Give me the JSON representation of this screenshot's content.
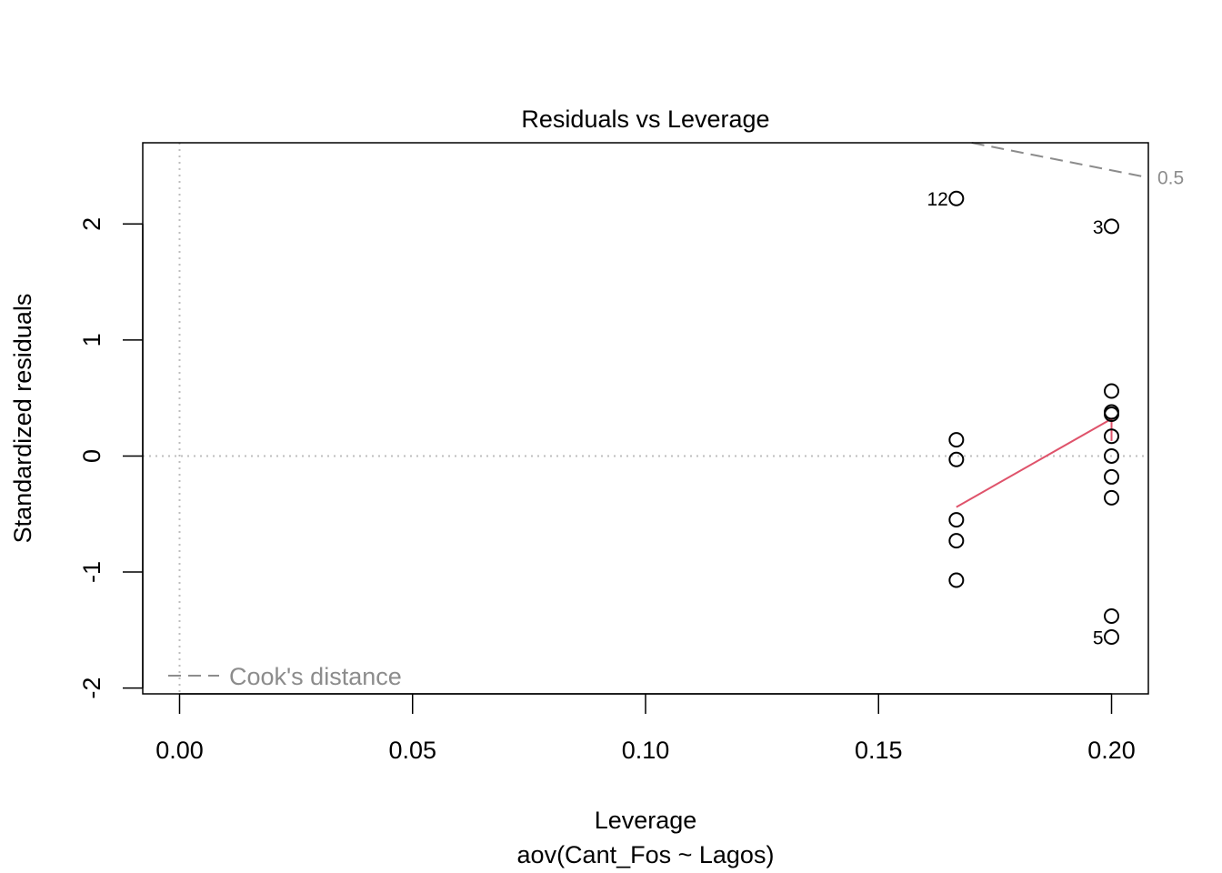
{
  "chart_data": {
    "type": "scatter",
    "title": "Residuals vs Leverage",
    "xlabel": "Leverage",
    "subtitle": "aov(Cant_Fos ~ Lagos)",
    "ylabel": "Standardized residuals",
    "xlim": [
      -0.0079,
      0.2079
    ],
    "ylim": [
      -2.05,
      2.7
    ],
    "x_ticks": [
      0.0,
      0.05,
      0.1,
      0.15,
      0.2
    ],
    "x_tick_labels": [
      "0.00",
      "0.05",
      "0.10",
      "0.15",
      "0.20"
    ],
    "y_ticks": [
      -2,
      -1,
      0,
      1,
      2
    ],
    "y_tick_labels": [
      "-2",
      "-1",
      "0",
      "1",
      "2"
    ],
    "reference_lines": {
      "x": 0,
      "y": 0
    },
    "points": [
      {
        "x": 0.1667,
        "y": 2.22,
        "label": "12"
      },
      {
        "x": 0.1667,
        "y": 0.14,
        "label": ""
      },
      {
        "x": 0.1667,
        "y": -0.03,
        "label": ""
      },
      {
        "x": 0.1667,
        "y": -0.55,
        "label": ""
      },
      {
        "x": 0.1667,
        "y": -0.73,
        "label": ""
      },
      {
        "x": 0.1667,
        "y": -1.07,
        "label": ""
      },
      {
        "x": 0.2,
        "y": 1.98,
        "label": "3"
      },
      {
        "x": 0.2,
        "y": 0.56,
        "label": ""
      },
      {
        "x": 0.2,
        "y": 0.38,
        "label": ""
      },
      {
        "x": 0.2,
        "y": 0.36,
        "label": ""
      },
      {
        "x": 0.2,
        "y": 0.17,
        "label": ""
      },
      {
        "x": 0.2,
        "y": 0.0,
        "label": ""
      },
      {
        "x": 0.2,
        "y": -0.18,
        "label": ""
      },
      {
        "x": 0.2,
        "y": -0.36,
        "label": ""
      },
      {
        "x": 0.2,
        "y": -1.38,
        "label": ""
      },
      {
        "x": 0.2,
        "y": -1.56,
        "label": "5"
      }
    ],
    "smooth_line": {
      "color": "#DF536B",
      "points": [
        {
          "x": 0.1667,
          "y": -0.44
        },
        {
          "x": 0.2,
          "y": 0.32
        },
        {
          "x": 0.2,
          "y": 0.13
        }
      ]
    },
    "cooks_distance": {
      "color": "#8C8C8C",
      "contour_label": "0.5",
      "points": [
        {
          "x": 0.17,
          "y": 2.7
        },
        {
          "x": 0.2079,
          "y": 2.4
        }
      ]
    },
    "legend": {
      "position": "bottom-left",
      "entries": [
        "Cook's distance"
      ]
    }
  }
}
